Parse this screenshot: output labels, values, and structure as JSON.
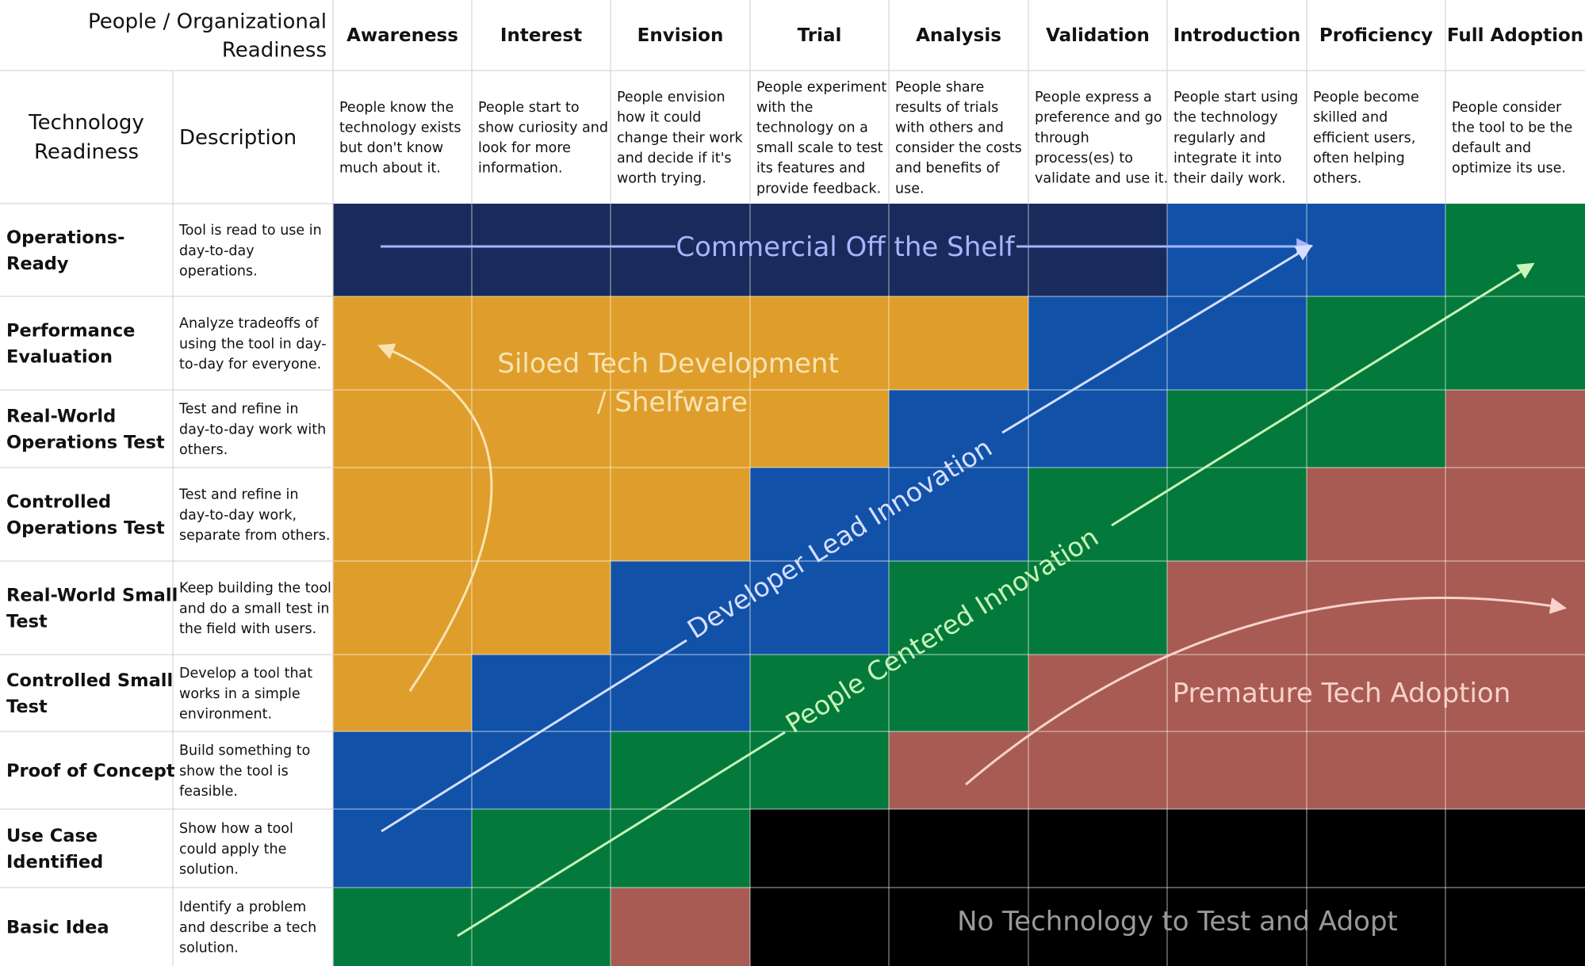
{
  "header": {
    "people_label_lines": [
      "People / Organizational",
      "Readiness"
    ],
    "tech_label_lines": [
      "Technology",
      "Readiness"
    ],
    "description_label": "Description"
  },
  "stages": [
    {
      "name": "Awareness",
      "desc_lines": [
        "People know the",
        "technology exists",
        "but don't know",
        "much about it."
      ]
    },
    {
      "name": "Interest",
      "desc_lines": [
        "People start to",
        "show curiosity and",
        "look for more",
        "information."
      ]
    },
    {
      "name": "Envision",
      "desc_lines": [
        "People envision",
        "how it could",
        "change their work",
        "and decide if it's",
        "worth trying."
      ]
    },
    {
      "name": "Trial",
      "desc_lines": [
        "People experiment",
        "with the",
        "technology on a",
        "small scale to test",
        "its features and",
        "provide feedback."
      ]
    },
    {
      "name": "Analysis",
      "desc_lines": [
        "People share",
        "results of trials",
        "with others and",
        "consider the costs",
        "and benefits of",
        "use."
      ]
    },
    {
      "name": "Validation",
      "desc_lines": [
        "People express a",
        "preference and go",
        "through",
        "process(es) to",
        "validate and use it."
      ]
    },
    {
      "name": "Introduction",
      "desc_lines": [
        "People start using",
        "the technology",
        "regularly and",
        "integrate it into",
        "their daily work."
      ]
    },
    {
      "name": "Proficiency",
      "desc_lines": [
        "People become",
        "skilled and",
        "efficient users,",
        "often helping",
        "others."
      ]
    },
    {
      "name": "Full Adoption",
      "desc_lines": [
        "People consider",
        "the tool to be the",
        "default and",
        "optimize its use."
      ]
    }
  ],
  "levels": [
    {
      "name_lines": [
        "Operations-",
        "Ready"
      ],
      "desc_lines": [
        "Tool is read to use in",
        "day-to-day",
        "operations."
      ],
      "cells": [
        "N",
        "N",
        "N",
        "N",
        "N",
        "N",
        "B",
        "B",
        "G"
      ]
    },
    {
      "name_lines": [
        "Performance",
        "Evaluation"
      ],
      "desc_lines": [
        "Analyze tradeoffs of",
        "using the tool in day-",
        "to-day for everyone."
      ],
      "cells": [
        "O",
        "O",
        "O",
        "O",
        "O",
        "B",
        "B",
        "G",
        "G"
      ]
    },
    {
      "name_lines": [
        "Real-World",
        "Operations Test"
      ],
      "desc_lines": [
        "Test and refine in",
        "day-to-day work with",
        "others."
      ],
      "cells": [
        "O",
        "O",
        "O",
        "O",
        "B",
        "B",
        "G",
        "G",
        "R"
      ]
    },
    {
      "name_lines": [
        "Controlled",
        "Operations Test"
      ],
      "desc_lines": [
        "Test and refine in",
        "day-to-day work,",
        "separate from others."
      ],
      "cells": [
        "O",
        "O",
        "O",
        "B",
        "B",
        "G",
        "G",
        "R",
        "R"
      ]
    },
    {
      "name_lines": [
        "Real-World Small",
        "Test"
      ],
      "desc_lines": [
        "Keep building the tool",
        "and do a small test in",
        "the field with users."
      ],
      "cells": [
        "O",
        "O",
        "B",
        "B",
        "G",
        "G",
        "R",
        "R",
        "R"
      ]
    },
    {
      "name_lines": [
        "Controlled Small",
        "Test"
      ],
      "desc_lines": [
        "Develop a tool that",
        "works in a simple",
        "environment."
      ],
      "cells": [
        "O",
        "B",
        "B",
        "G",
        "G",
        "R",
        "R",
        "R",
        "R"
      ]
    },
    {
      "name_lines": [
        "Proof of Concept"
      ],
      "desc_lines": [
        "Build something to",
        "show the tool is",
        "feasible."
      ],
      "cells": [
        "B",
        "B",
        "G",
        "G",
        "R",
        "R",
        "R",
        "R",
        "R"
      ]
    },
    {
      "name_lines": [
        "Use Case",
        "Identified"
      ],
      "desc_lines": [
        "Show how a tool",
        "could apply the",
        "solution."
      ],
      "cells": [
        "B",
        "G",
        "G",
        "K",
        "K",
        "K",
        "K",
        "K",
        "K"
      ]
    },
    {
      "name_lines": [
        "Basic Idea"
      ],
      "desc_lines": [
        "Identify a problem",
        "and describe a tech",
        "solution."
      ],
      "cells": [
        "G",
        "G",
        "R",
        "K",
        "K",
        "K",
        "K",
        "K",
        "K"
      ]
    }
  ],
  "zone_colors": {
    "N": "#182b5c",
    "B": "#1152a8",
    "G": "#037a3c",
    "O": "#df9e2b",
    "R": "#a85b52",
    "K": "#000000"
  },
  "annotations": {
    "commercial": "Commercial Off the Shelf",
    "siloed_lines": [
      "Siloed Tech Development",
      "/ Shelfware"
    ],
    "developer": "Developer Lead Innovation",
    "people": "People Centered Innovation",
    "premature": "Premature Tech Adoption",
    "no_tech": "No Technology to Test and Adopt"
  },
  "annotation_colors": {
    "commercial": "#a9b4ff",
    "siloed": "#f8e3b2",
    "developer": "#d7defc",
    "people": "#c9f5b8",
    "premature": "#f7d2cc",
    "no_tech": "#9a9a9a"
  }
}
